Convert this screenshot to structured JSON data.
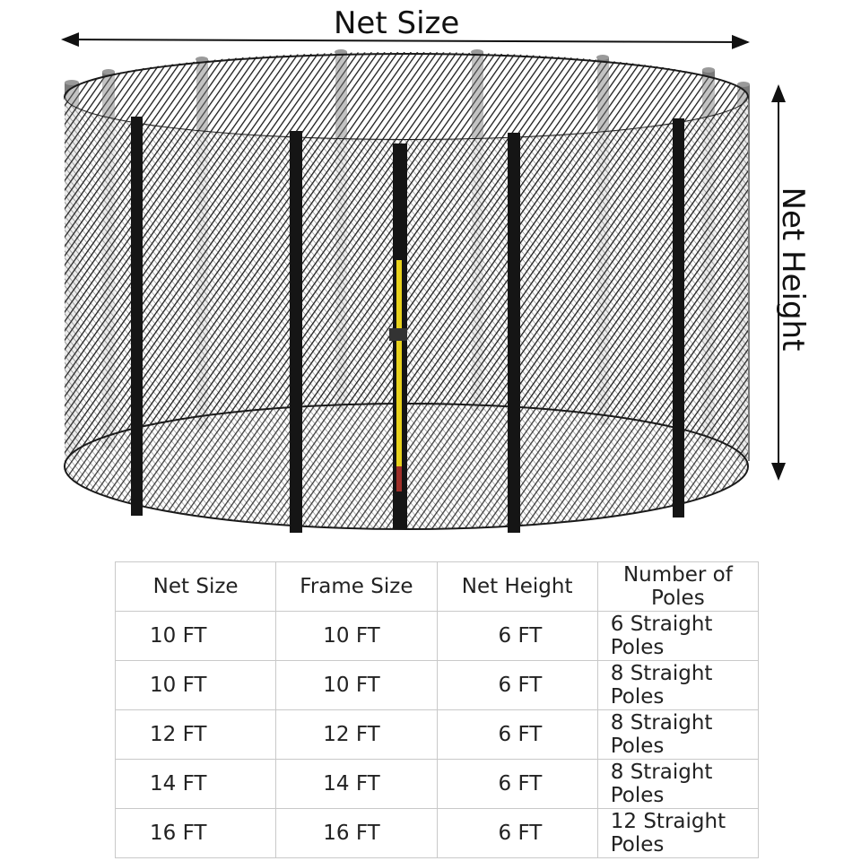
{
  "dimensions": {
    "width_label": "Net Size",
    "height_label": "Net Height"
  },
  "table": {
    "headers": [
      "Net Size",
      "Frame Size",
      "Net Height",
      "Number of Poles"
    ],
    "rows": [
      [
        "10 FT",
        "10 FT",
        "6  FT",
        "6 Straight Poles"
      ],
      [
        "10 FT",
        "10 FT",
        "6  FT",
        "8 Straight Poles"
      ],
      [
        "12 FT",
        "12 FT",
        "6  FT",
        "8 Straight Poles"
      ],
      [
        "14 FT",
        "14 FT",
        "6  FT",
        "8 Straight Poles"
      ],
      [
        "16 FT",
        "16 FT",
        "6  FT",
        "12 Straight Poles"
      ]
    ]
  },
  "colors": {
    "net": "#1a1a1a",
    "pole_back": "#7a7a7a",
    "pole_front": "#151515",
    "zipper": "#e8d21c"
  }
}
